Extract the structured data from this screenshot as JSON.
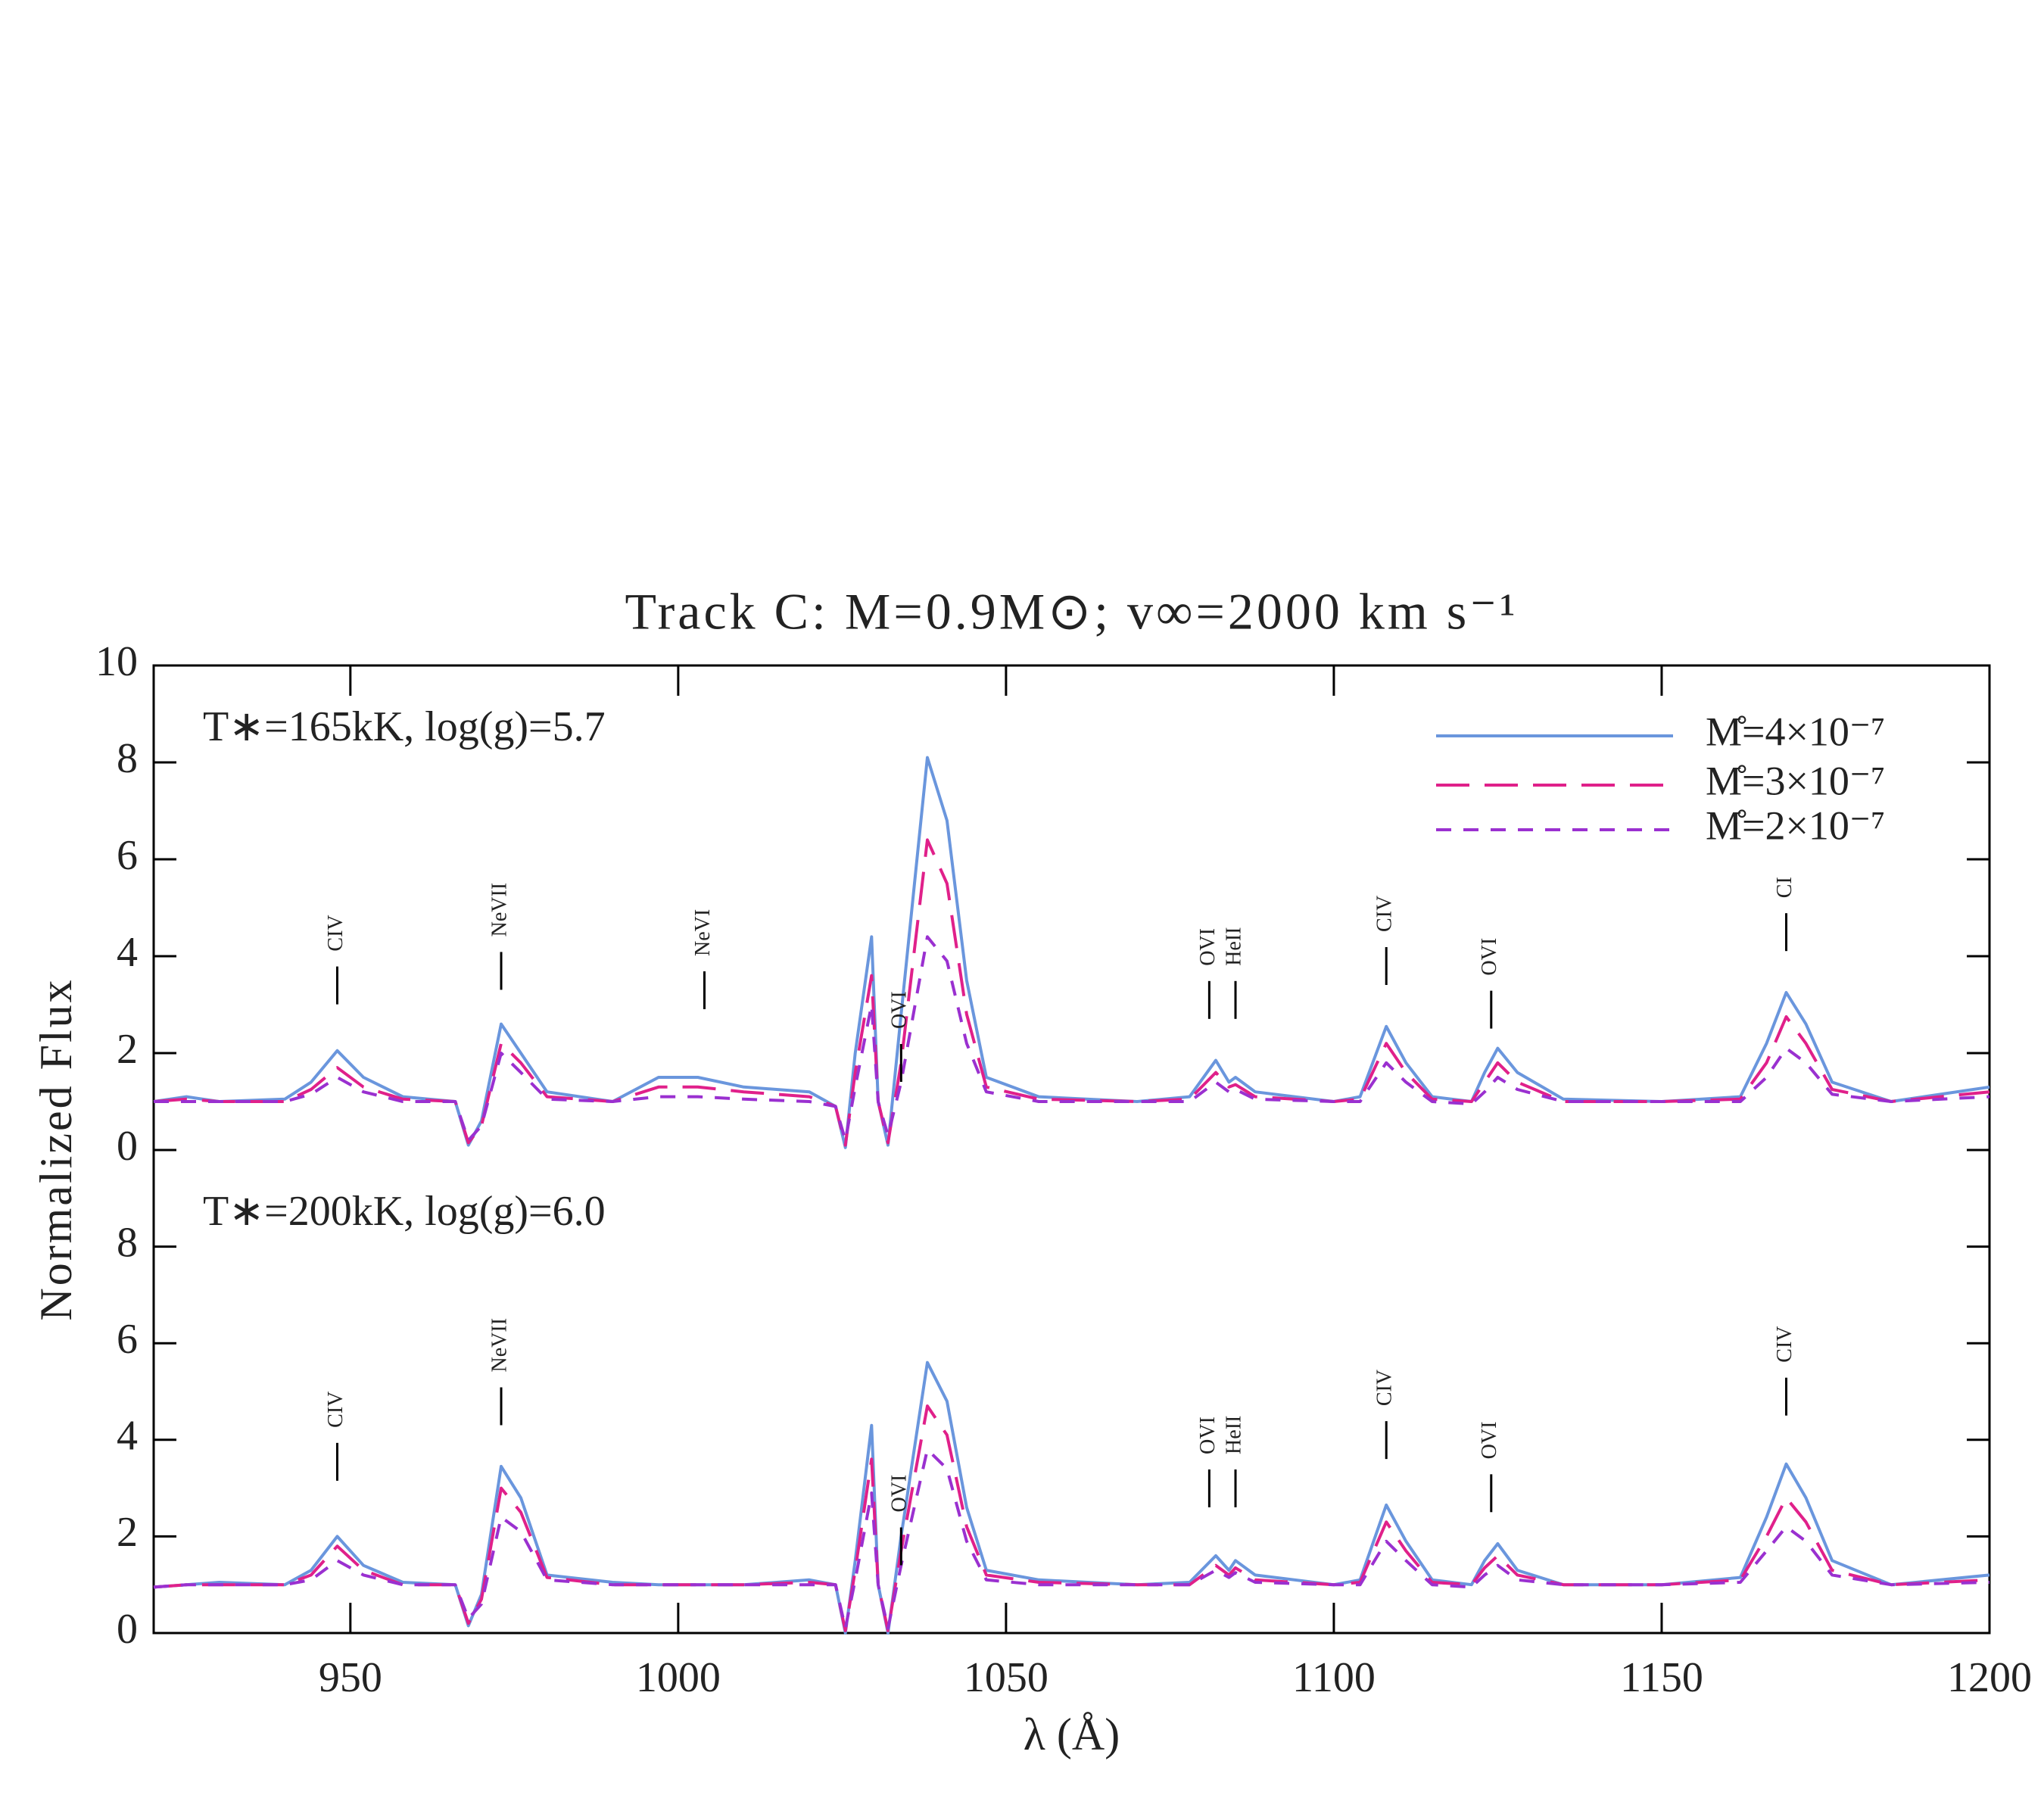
{
  "chart_data": [
    {
      "type": "line",
      "title": "Track C: M=0.9M⊙; v∞=2000 km s⁻¹",
      "panel_label": "T∗=165kK, log(g)=5.7",
      "legend": "upper right",
      "xlim": [
        920,
        1200
      ],
      "ylim": [
        0,
        10
      ],
      "yticks": [
        0,
        2,
        4,
        6,
        8,
        10
      ],
      "x": [
        920,
        925,
        930,
        940,
        944,
        948,
        952,
        958,
        966,
        968,
        970,
        973,
        976,
        980,
        990,
        997,
        1003,
        1010,
        1020,
        1024,
        1025.5,
        1027,
        1029.5,
        1030.5,
        1032,
        1034,
        1038,
        1041,
        1044,
        1047,
        1055,
        1070,
        1078,
        1082,
        1084,
        1085,
        1088,
        1100,
        1104,
        1108,
        1111,
        1115,
        1121,
        1123,
        1125,
        1128,
        1135,
        1150,
        1162,
        1166,
        1169,
        1172,
        1176,
        1185,
        1200
      ],
      "series": [
        {
          "name": "M̊=4×10⁻⁷",
          "color": "#6a96dd",
          "dash": "solid",
          "values": [
            1.0,
            1.1,
            1.0,
            1.05,
            1.4,
            2.05,
            1.5,
            1.1,
            1.0,
            0.1,
            0.6,
            2.6,
            2.0,
            1.2,
            1.0,
            1.5,
            1.5,
            1.3,
            1.2,
            0.9,
            0.05,
            2.0,
            4.4,
            1.0,
            0.1,
            2.8,
            8.1,
            6.8,
            3.5,
            1.5,
            1.1,
            1.0,
            1.1,
            1.85,
            1.4,
            1.5,
            1.2,
            1.0,
            1.1,
            2.55,
            1.8,
            1.1,
            1.0,
            1.6,
            2.1,
            1.6,
            1.05,
            1.0,
            1.1,
            2.2,
            3.25,
            2.6,
            1.4,
            1.0,
            1.3
          ]
        },
        {
          "name": "M̊=3×10⁻⁷",
          "color": "#e0208a",
          "dash": "long",
          "values": [
            1.0,
            1.05,
            1.0,
            1.0,
            1.25,
            1.7,
            1.3,
            1.05,
            1.0,
            0.15,
            0.5,
            2.2,
            1.8,
            1.1,
            1.0,
            1.3,
            1.3,
            1.2,
            1.1,
            0.9,
            0.1,
            1.6,
            3.6,
            1.0,
            0.15,
            1.8,
            6.4,
            5.5,
            2.8,
            1.3,
            1.05,
            1.0,
            1.05,
            1.6,
            1.3,
            1.35,
            1.1,
            1.0,
            1.05,
            2.2,
            1.6,
            1.05,
            1.0,
            1.4,
            1.8,
            1.4,
            1.0,
            1.0,
            1.05,
            1.8,
            2.75,
            2.2,
            1.25,
            1.0,
            1.2
          ]
        },
        {
          "name": "M̊=2×10⁻⁷",
          "color": "#9a30d0",
          "dash": "short",
          "values": [
            1.0,
            1.0,
            1.0,
            1.0,
            1.15,
            1.5,
            1.2,
            1.0,
            1.0,
            0.2,
            0.5,
            2.0,
            1.6,
            1.05,
            1.0,
            1.1,
            1.1,
            1.05,
            1.0,
            0.9,
            0.2,
            1.3,
            3.0,
            1.0,
            0.3,
            1.4,
            4.4,
            3.9,
            2.2,
            1.2,
            1.0,
            1.0,
            1.0,
            1.4,
            1.2,
            1.25,
            1.05,
            1.0,
            1.0,
            1.8,
            1.4,
            1.0,
            0.95,
            1.2,
            1.5,
            1.25,
            1.0,
            1.0,
            1.0,
            1.5,
            2.1,
            1.8,
            1.15,
            1.0,
            1.1
          ]
        }
      ],
      "annotations": [
        {
          "text": "CIV",
          "x": 948,
          "y": 4.1
        },
        {
          "text": "NeVII",
          "x": 973,
          "y": 4.4
        },
        {
          "text": "NeVI",
          "x": 1004,
          "y": 4.0
        },
        {
          "text": "OVI",
          "x": 1034,
          "y": 2.5
        },
        {
          "text": "OVI",
          "x": 1081,
          "y": 3.8
        },
        {
          "text": "HeII",
          "x": 1085,
          "y": 3.8
        },
        {
          "text": "CIV",
          "x": 1108,
          "y": 4.5
        },
        {
          "text": "OVI",
          "x": 1124,
          "y": 3.6
        },
        {
          "text": "CI",
          "x": 1169,
          "y": 5.2
        }
      ]
    },
    {
      "type": "line",
      "panel_label": "T∗=200kK, log(g)=6.0",
      "xlabel": "λ (Å)",
      "ylabel": "Normalized Flux",
      "xlim": [
        920,
        1200
      ],
      "xticks": [
        950,
        1000,
        1050,
        1100,
        1150,
        1200
      ],
      "ylim": [
        0,
        10
      ],
      "yticks": [
        0,
        2,
        4,
        6,
        8
      ],
      "x": [
        920,
        925,
        930,
        940,
        944,
        948,
        952,
        958,
        966,
        968,
        970,
        973,
        976,
        980,
        990,
        997,
        1003,
        1010,
        1020,
        1024,
        1025.5,
        1027,
        1029.5,
        1030.5,
        1032,
        1034,
        1038,
        1041,
        1044,
        1047,
        1055,
        1070,
        1078,
        1082,
        1084,
        1085,
        1088,
        1100,
        1104,
        1108,
        1111,
        1115,
        1121,
        1123,
        1125,
        1128,
        1135,
        1150,
        1162,
        1166,
        1169,
        1172,
        1176,
        1185,
        1200
      ],
      "series": [
        {
          "color": "#6a96dd",
          "dash": "solid",
          "values": [
            0.95,
            1.0,
            1.05,
            1.0,
            1.3,
            2.0,
            1.4,
            1.05,
            1.0,
            0.15,
            0.8,
            3.45,
            2.8,
            1.2,
            1.05,
            1.0,
            1.0,
            1.0,
            1.1,
            1.0,
            0.0,
            1.5,
            4.3,
            1.0,
            0.0,
            2.0,
            5.6,
            4.8,
            2.6,
            1.3,
            1.1,
            1.0,
            1.05,
            1.6,
            1.3,
            1.5,
            1.2,
            1.0,
            1.1,
            2.65,
            1.9,
            1.1,
            1.0,
            1.5,
            1.85,
            1.3,
            1.0,
            1.0,
            1.15,
            2.4,
            3.5,
            2.8,
            1.5,
            1.0,
            1.2
          ]
        },
        {
          "color": "#e0208a",
          "dash": "long",
          "values": [
            0.95,
            1.0,
            1.0,
            1.0,
            1.2,
            1.8,
            1.3,
            1.0,
            1.0,
            0.2,
            0.7,
            3.0,
            2.5,
            1.15,
            1.0,
            1.0,
            1.0,
            1.0,
            1.05,
            1.0,
            0.05,
            1.3,
            3.6,
            1.0,
            0.05,
            1.7,
            4.7,
            4.1,
            2.2,
            1.2,
            1.05,
            1.0,
            1.0,
            1.4,
            1.2,
            1.35,
            1.1,
            1.0,
            1.05,
            2.3,
            1.7,
            1.05,
            1.0,
            1.35,
            1.6,
            1.2,
            1.0,
            1.0,
            1.1,
            2.0,
            2.8,
            2.3,
            1.3,
            1.0,
            1.1
          ]
        },
        {
          "color": "#9a30d0",
          "dash": "short",
          "values": [
            0.95,
            1.0,
            1.0,
            1.0,
            1.1,
            1.5,
            1.2,
            1.0,
            1.0,
            0.3,
            0.6,
            2.4,
            2.1,
            1.1,
            1.0,
            1.0,
            1.0,
            1.0,
            1.0,
            1.0,
            0.1,
            1.1,
            2.9,
            1.0,
            0.1,
            1.4,
            3.8,
            3.4,
            1.9,
            1.1,
            1.0,
            1.0,
            1.0,
            1.3,
            1.15,
            1.25,
            1.05,
            1.0,
            1.0,
            1.9,
            1.5,
            1.0,
            0.95,
            1.2,
            1.4,
            1.1,
            1.0,
            1.0,
            1.05,
            1.7,
            2.2,
            1.9,
            1.2,
            1.0,
            1.05
          ]
        }
      ],
      "annotations": [
        {
          "text": "CIV",
          "x": 948,
          "y": 4.25
        },
        {
          "text": "NeVII",
          "x": 973,
          "y": 5.4
        },
        {
          "text": "OVI",
          "x": 1034,
          "y": 2.5
        },
        {
          "text": "OVI",
          "x": 1081,
          "y": 3.7
        },
        {
          "text": "HeII",
          "x": 1085,
          "y": 3.7
        },
        {
          "text": "CIV",
          "x": 1108,
          "y": 4.7
        },
        {
          "text": "OVI",
          "x": 1124,
          "y": 3.6
        },
        {
          "text": "CIV",
          "x": 1169,
          "y": 5.6
        }
      ]
    }
  ]
}
